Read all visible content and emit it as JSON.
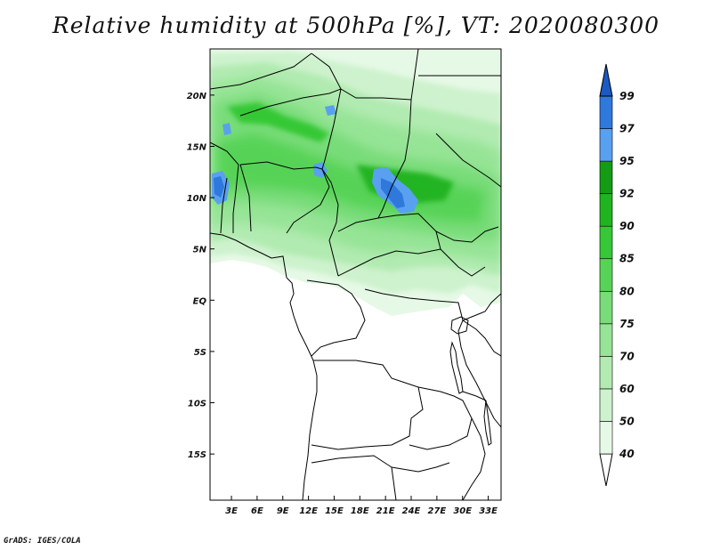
{
  "title": "Relative humidity at 500hPa [%], VT: 2020080300",
  "credit": "GrADS: IGES/COLA",
  "map": {
    "lat_range": [
      -19.5,
      24.5
    ],
    "lon_range": [
      0.5,
      34.5
    ],
    "lat_ticks": [
      "20N",
      "15N",
      "10N",
      "5N",
      "EQ",
      "5S",
      "10S",
      "15S"
    ],
    "lon_ticks": [
      "3E",
      "6E",
      "9E",
      "12E",
      "15E",
      "18E",
      "21E",
      "24E",
      "27E",
      "30E",
      "33E"
    ]
  },
  "colorbar": {
    "levels": [
      "40",
      "50",
      "60",
      "70",
      "75",
      "80",
      "85",
      "90",
      "92",
      "95",
      "97",
      "99"
    ],
    "colors": [
      "#ffffff",
      "#e6f9e6",
      "#cdf2cd",
      "#b2ebb2",
      "#96e496",
      "#78dc78",
      "#57d357",
      "#36c836",
      "#20b420",
      "#159c15",
      "#5aa0f0",
      "#2f78dc",
      "#1a5ac4"
    ]
  }
}
